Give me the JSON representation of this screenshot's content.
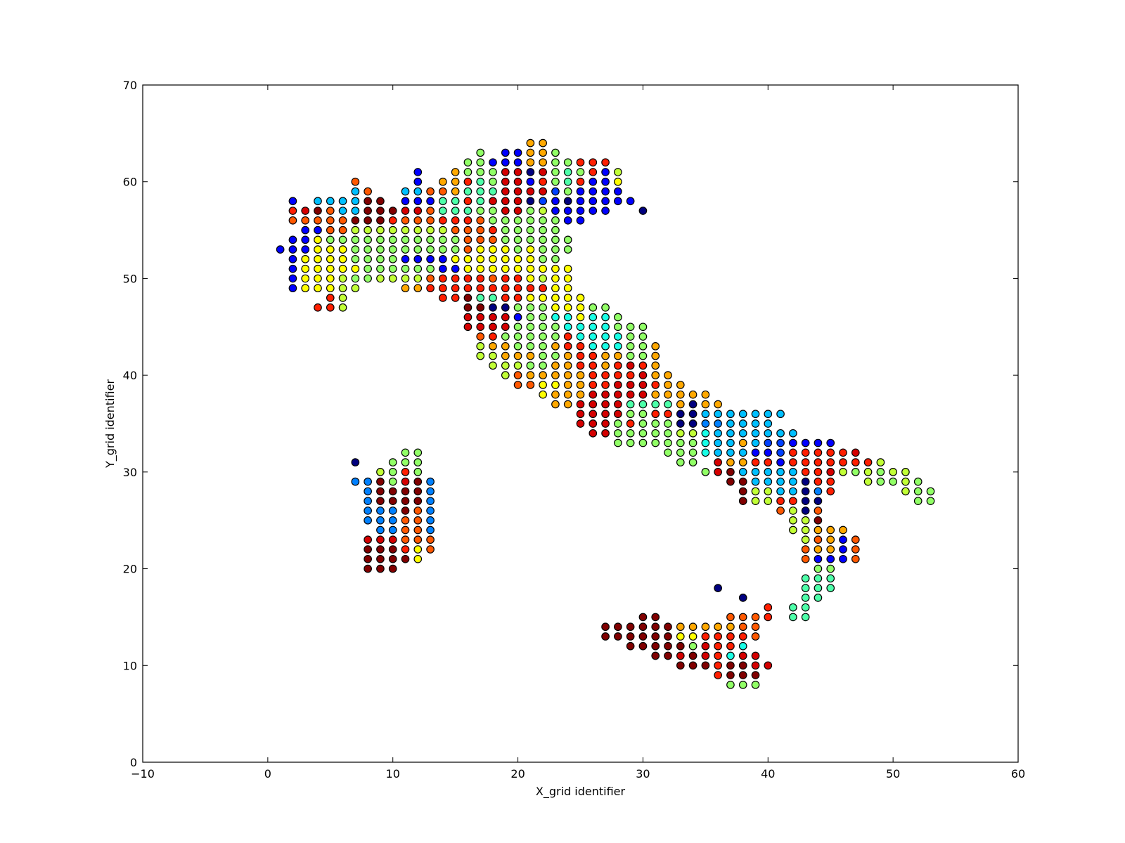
{
  "chart_data": {
    "type": "scatter",
    "title": "",
    "xlabel": "X_grid identifier",
    "ylabel": "Y_grid identifier",
    "xlim": [
      -10,
      60
    ],
    "ylim": [
      0,
      70
    ],
    "xticks": [
      -10,
      0,
      10,
      20,
      30,
      40,
      50,
      60
    ],
    "yticks": [
      0,
      10,
      20,
      30,
      40,
      50,
      60,
      70
    ],
    "xtick_labels": [
      "−10",
      "0",
      "10",
      "20",
      "30",
      "40",
      "50",
      "60"
    ],
    "ytick_labels": [
      "0",
      "10",
      "20",
      "30",
      "40",
      "50",
      "60",
      "70"
    ],
    "grid": false,
    "legend": "none",
    "marker": "circle",
    "colormap": "jet",
    "palette": {
      "a": "#00007f",
      "b": "#0000ff",
      "c": "#0040ff",
      "d": "#0080ff",
      "e": "#00bfff",
      "f": "#19ffe6",
      "g": "#4dffa9",
      "h": "#91ff66",
      "i": "#c1ff36",
      "j": "#ffff00",
      "k": "#ffa800",
      "l": "#ff5800",
      "m": "#ff1e00",
      "n": "#d40000",
      "o": "#800000"
    },
    "rows": [
      {
        "y": 64,
        "s": "k21,k22"
      },
      {
        "y": 63,
        "s": "h17,b19,b20,k21,k22,h23"
      },
      {
        "y": 62,
        "s": "h16,h17,b18,b19,b20,k21,k22,h23,h24,m25,m26,m27"
      },
      {
        "y": 61,
        "s": "b12,k15,h16,h17,h18,n19,n20,a21,n22,h23,g24,h25,m26,b27,i28"
      },
      {
        "y": 60,
        "s": "l7,b12,k14,k15,m16,g17,h18,n19,n20,b21,m22,h23,g24,m25,b26,b27,j28"
      },
      {
        "y": 59,
        "s": "e7,l8,e11,e12,l13,l14,k15,g16,g17,g18,n19,n20,n21,n22,c23,h24,b25,b26,b27,b28"
      },
      {
        "y": 58,
        "s": "b2,e4,e5,e6,e7,o8,o9,b11,b12,b13,g14,g15,m16,g17,n18,n19,n20,a21,c22,b23,a24,b25,b26,b27,b28,b29"
      },
      {
        "y": 57,
        "s": "m2,n3,o4,l5,e6,e7,o8,o9,o10,n11,n12,l13,g14,g15,g16,h17,h18,n19,n20,h21,i22,b23,b24,b25,b26,b27,a30"
      },
      {
        "y": 56,
        "s": "l2,l3,l4,l5,l6,o7,o8,o9,m10,l11,l12,l13,m14,m15,m16,l17,h18,h19,h20,h21,h22,h23,b24,b25"
      },
      {
        "y": 55,
        "s": "b3,b4,l5,l6,i7,i8,i9,i10,i11,i12,i13,i14,l15,l16,l17,m18,h19,h20,h21,h22,h23"
      },
      {
        "y": 54,
        "s": "b2,b3,j4,h5,h6,h7,h8,h9,h10,h11,h12,h13,h14,h15,l16,l17,l18,h19,h20,h21,h22,h23,h24"
      },
      {
        "y": 53,
        "s": "b1,b2,b3,j4,j5,j6,h7,h8,h9,h10,h11,h12,h13,h14,h15,l16,j17,j18,j19,h20,j21,h22,h23,h24"
      },
      {
        "y": 52,
        "s": "b2,j3,j4,j5,j6,h7,h8,h9,h10,b11,b12,b13,b14,j15,j16,j17,j18,j19,j20,j21,h22,h23"
      },
      {
        "y": 51,
        "s": "b2,j3,j4,j5,j6,j7,h8,h9,h10,h11,h12,h13,b14,b15,j16,j17,j18,j19,j20,j21,j22,j23,j24"
      },
      {
        "y": 50,
        "s": "b2,j3,j4,j5,i6,h7,h8,i9,i10,i11,i12,l13,m14,m15,m16,m17,l18,m19,m20,j21,i22,j23,j24"
      },
      {
        "y": 49,
        "s": "b2,j3,j4,j5,i6,i7,k11,k12,m13,m14,m15,m16,m17,m18,m19,m20,m21,m22,j23,j24"
      },
      {
        "y": 48,
        "s": "m5,i6,m14,m15,o16,g17,g18,m19,m20,j21,j22,j23,j24,j25"
      },
      {
        "y": 47,
        "s": "m4,m5,i6,o16,o17,a18,a19,h20,h21,h22,j23,j24,j25,h26,h27"
      },
      {
        "y": 46,
        "s": "n16,n17,n18,n19,b20,h21,h22,f23,f24,j25,f26,f27,h28"
      },
      {
        "y": 45,
        "s": "n16,n17,n18,n19,h20,h21,h22,h23,f24,f25,f26,f27,h28,h29,h30"
      },
      {
        "y": 44,
        "s": "l17,m18,h19,h20,h21,h22,h23,m24,f25,f26,f27,f28,h29,h30"
      },
      {
        "y": 43,
        "s": "i17,k18,k19,h20,h21,h22,k23,m24,m25,f26,f27,f28,h29,h30,k31"
      },
      {
        "y": 42,
        "s": "i17,i18,k19,k20,k21,h22,h23,k24,m25,m26,k27,k28,h29,h30,k31"
      },
      {
        "y": 41,
        "s": "i18,i19,i20,h21,h22,k23,k24,m25,m26,k27,m28,n29,m30,k31"
      },
      {
        "y": 40,
        "s": "i19,l20,k21,k22,k23,k24,k25,m26,m27,m28,m29,n30,k31,k32"
      },
      {
        "y": 39,
        "s": "l20,l21,j22,j23,k24,k25,m26,m27,n28,n29,n30,m31,k32,k33"
      },
      {
        "y": 38,
        "s": "j22,k23,k24,k25,n26,n27,n28,n29,n30,k31,k32,k33,k34,k35"
      },
      {
        "y": 37,
        "s": "k23,k24,n25,n26,n27,n28,g29,g30,g31,g32,k33,a34,k35,k36"
      },
      {
        "y": 36,
        "s": "n25,n26,n27,n28,h29,h30,m31,m32,a33,a34,e35,e36,e37,e38,e39,e40,e41"
      },
      {
        "y": 35,
        "s": "n25,n26,n27,h28,m29,h30,h31,h32,a33,a34,d35,d36,e37,e38,e39,e40"
      },
      {
        "y": 34,
        "s": "n26,n27,h28,h29,h30,h31,h32,i33,i34,f35,e36,e37,e38,e39,e40,e41,e42"
      },
      {
        "y": 33,
        "s": "h28,h29,h30,h31,h32,h33,h34,f35,e36,e37,k38,e39,c40,c41,b42,b43,b44,b45"
      },
      {
        "y": 32,
        "s": "h32,h33,h34,f35,e36,e37,e38,b39,b40,c41,m42,m43,m44,m45,m46,n47"
      },
      {
        "y": 31,
        "s": "h33,h34,n36,k37,k38,m39,m40,b41,m42,m43,m44,m45,m46,m47,m48,i49"
      },
      {
        "y": 30,
        "s": "h35,n36,o37,e38,e39,e40,e41,e42,m43,m44,n45,i46,h47,i48,h49,i50,i51"
      },
      {
        "y": 29,
        "s": "o37,o38,e39,e40,e41,e42,a43,m44,m45,i48,h49,h50,i51,h52"
      },
      {
        "y": 28,
        "s": "o38,i39,i40,e41,e42,a43,d44,m45,i51,h52,h53"
      },
      {
        "y": 27,
        "s": "o38,i39,i40,m41,m42,a43,a44,h52,h53"
      },
      {
        "y": 26,
        "s": "l41,i42,a43,l44"
      },
      {
        "y": 25,
        "s": "i42,i43,o44"
      },
      {
        "y": 24,
        "s": "i42,i43,k44,k45,k46"
      },
      {
        "y": 23,
        "s": "i43,l44,k45,b46,l47"
      },
      {
        "y": 22,
        "s": "l43,k44,k45,b46,l47"
      },
      {
        "y": 21,
        "s": "l43,b44,b45,b46,l47"
      },
      {
        "y": 20,
        "s": "h44,h45"
      },
      {
        "y": 19,
        "s": "g43,g44,g45"
      },
      {
        "y": 18,
        "s": "a36,g43,g44,g45"
      },
      {
        "y": 17,
        "s": "a38,g43,g44"
      },
      {
        "y": 16,
        "s": "m40,g42,g43"
      },
      {
        "y": 15,
        "s": "o30,o31,l37,l38,l39,m40,g42,g43"
      },
      {
        "y": 14,
        "s": "o27,o28,o29,o30,o31,o32,k33,k34,k35,k36,k37,l38,l39"
      },
      {
        "y": 13,
        "s": "o27,o28,o29,o30,o31,o32,j33,j34,m35,m36,m37,m38,l39"
      },
      {
        "y": 12,
        "s": "o29,o30,o31,o32,o33,h34,n35,m36,m37,f38"
      },
      {
        "y": 11,
        "s": "o31,o32,n33,o34,n35,m36,f37,n38,n39"
      },
      {
        "y": 10,
        "s": "o33,o34,o35,m36,o37,o38,n39,n40"
      },
      {
        "y": 9,
        "s": "m36,o37,o38,o39"
      },
      {
        "y": 8,
        "s": "h37,h38,h39"
      },
      {
        "y": 31,
        "s": "a7,h10,h11,h12"
      },
      {
        "y": 32,
        "s": "h11,h12"
      },
      {
        "y": 30,
        "s": "i9,h10,m11,h12"
      },
      {
        "y": 29,
        "s": "d7,d8,o9,h10,n11,o12,d13"
      },
      {
        "y": 28,
        "s": "d8,o9,o10,o11,o12,d13"
      },
      {
        "y": 27,
        "s": "d8,o9,o10,o11,o12,d13"
      },
      {
        "y": 26,
        "s": "d8,d9,d10,o11,l12,d13"
      },
      {
        "y": 25,
        "s": "d8,d9,d10,l11,l12,d13"
      },
      {
        "y": 24,
        "s": "d9,d10,l11,l12,d13"
      },
      {
        "y": 23,
        "s": "n8,n9,n10,l11,l12,l13"
      },
      {
        "y": 22,
        "s": "o8,o9,o10,m11,j12,l13"
      },
      {
        "y": 21,
        "s": "o8,o9,o10,o11,j12"
      },
      {
        "y": 20,
        "s": "o8,o9,o10"
      }
    ]
  }
}
